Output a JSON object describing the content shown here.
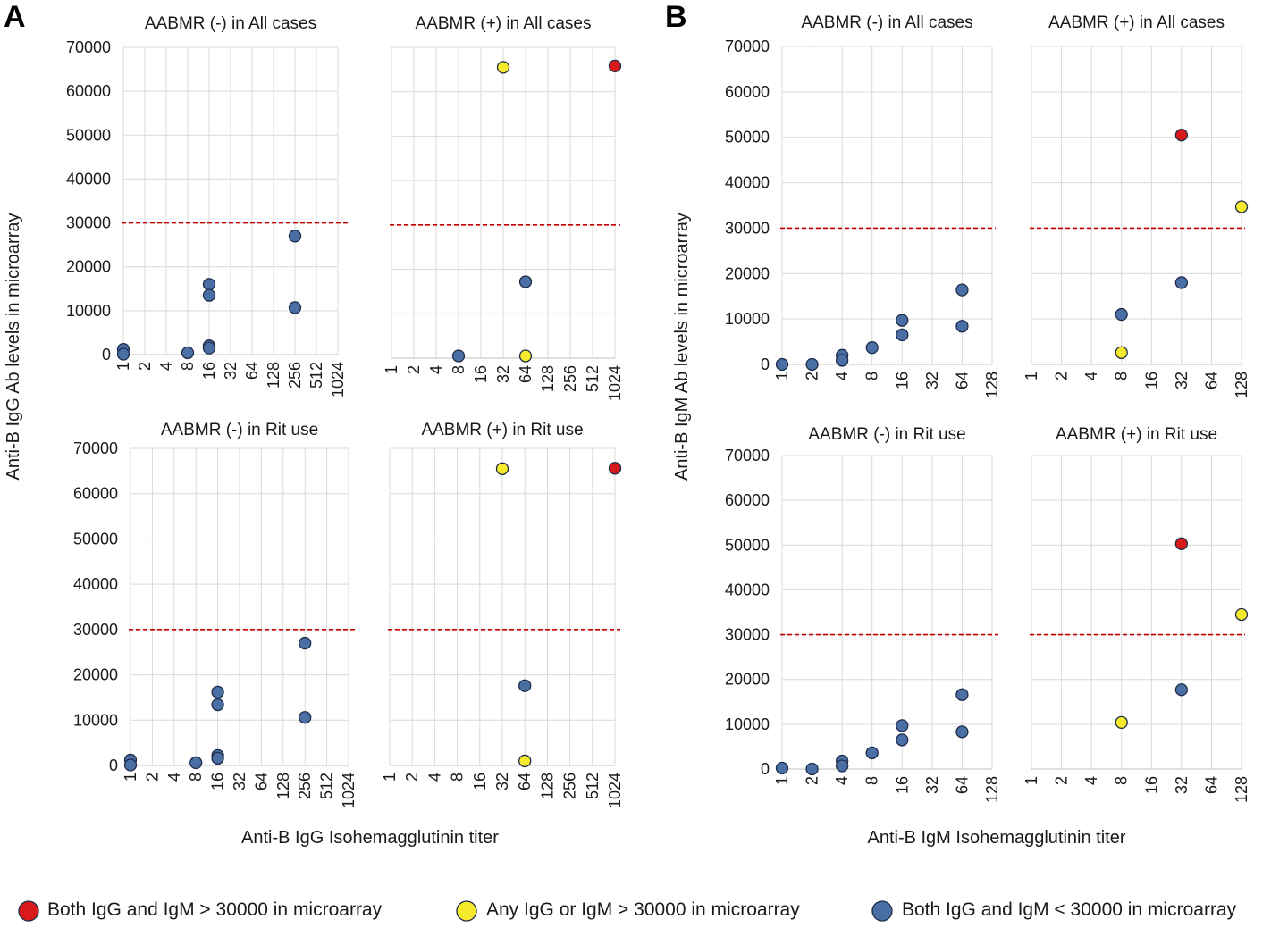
{
  "panel_letters": [
    "A",
    "B"
  ],
  "common_axis_labels": {
    "A_y": "Anti-B IgG Ab levels in microarray",
    "A_x": "Anti-B IgG Isohemagglutinin titer",
    "B_y": "Anti-B IgM Ab levels in microarray",
    "B_x": "Anti-B IgM Isohemagglutinin titer"
  },
  "colors": {
    "both_over": "#d91a1a",
    "any_over": "#f5ea2c",
    "both_under": "#4a6fa5",
    "threshold_line": "#c00000"
  },
  "legend": [
    {
      "key": "both_over",
      "label": "Both IgG and IgM > 30000 in microarray"
    },
    {
      "key": "any_over",
      "label": "Any IgG or IgM > 30000 in microarray"
    },
    {
      "key": "both_under",
      "label": "Both IgG and IgM < 30000 in microarray"
    }
  ],
  "chart_data": [
    {
      "id": "A1",
      "type": "scatter",
      "title": "AABMR (-) in All cases",
      "xscale": "log2",
      "x_ticks": [
        "1",
        "2",
        "4",
        "8",
        "16",
        "32",
        "64",
        "128",
        "256",
        "512",
        "1024"
      ],
      "yticks": [
        "0",
        "10000",
        "20000",
        "30000",
        "40000",
        "50000",
        "60000",
        "70000"
      ],
      "ylim": [
        0,
        70000
      ],
      "threshold": 30000,
      "grid": true,
      "xlabel": "Anti-B IgG Isohemagglutinin titer",
      "ylabel": "Anti-B IgG Ab levels in microarray",
      "points": [
        {
          "x": 1,
          "y": 1200,
          "group": "both_under"
        },
        {
          "x": 1,
          "y": 100,
          "group": "both_under"
        },
        {
          "x": 8,
          "y": 400,
          "group": "both_under"
        },
        {
          "x": 16,
          "y": 16000,
          "group": "both_under"
        },
        {
          "x": 16,
          "y": 13500,
          "group": "both_under"
        },
        {
          "x": 16,
          "y": 2000,
          "group": "both_under"
        },
        {
          "x": 16,
          "y": 1500,
          "group": "both_under"
        },
        {
          "x": 256,
          "y": 27000,
          "group": "both_under"
        },
        {
          "x": 256,
          "y": 10700,
          "group": "both_under"
        }
      ]
    },
    {
      "id": "A2",
      "type": "scatter",
      "title": "AABMR (+) in All cases",
      "xscale": "log2",
      "x_ticks": [
        "1",
        "2",
        "4",
        "8",
        "16",
        "32",
        "64",
        "128",
        "256",
        "512",
        "1024"
      ],
      "yticks": [
        "0",
        "10000",
        "20000",
        "30000",
        "40000",
        "50000",
        "60000",
        "70000"
      ],
      "ylim": [
        0,
        70000
      ],
      "threshold": 30000,
      "grid": true,
      "points": [
        {
          "x": 32,
          "y": 65500,
          "group": "any_over"
        },
        {
          "x": 1024,
          "y": 65800,
          "group": "both_over"
        },
        {
          "x": 64,
          "y": 17200,
          "group": "both_under"
        },
        {
          "x": 8,
          "y": 500,
          "group": "both_under"
        },
        {
          "x": 64,
          "y": 500,
          "group": "any_over"
        }
      ]
    },
    {
      "id": "A3",
      "type": "scatter",
      "title": "AABMR (-) in Rit use",
      "xscale": "log2",
      "x_ticks": [
        "1",
        "2",
        "4",
        "8",
        "16",
        "32",
        "64",
        "128",
        "256",
        "512",
        "1024"
      ],
      "yticks": [
        "0",
        "10000",
        "20000",
        "30000",
        "40000",
        "50000",
        "60000",
        "70000"
      ],
      "ylim": [
        0,
        70000
      ],
      "threshold": 30000,
      "grid": true,
      "points": [
        {
          "x": 1,
          "y": 1200,
          "group": "both_under"
        },
        {
          "x": 1,
          "y": 100,
          "group": "both_under"
        },
        {
          "x": 8,
          "y": 600,
          "group": "both_under"
        },
        {
          "x": 16,
          "y": 16200,
          "group": "both_under"
        },
        {
          "x": 16,
          "y": 13400,
          "group": "both_under"
        },
        {
          "x": 16,
          "y": 2200,
          "group": "both_under"
        },
        {
          "x": 16,
          "y": 1600,
          "group": "both_under"
        },
        {
          "x": 256,
          "y": 27000,
          "group": "both_under"
        },
        {
          "x": 256,
          "y": 10600,
          "group": "both_under"
        }
      ]
    },
    {
      "id": "A4",
      "type": "scatter",
      "title": "AABMR (+) in Rit use",
      "xscale": "log2",
      "x_ticks": [
        "1",
        "2",
        "4",
        "8",
        "16",
        "32",
        "64",
        "128",
        "256",
        "512",
        "1024"
      ],
      "yticks": [
        "0",
        "10000",
        "20000",
        "30000",
        "40000",
        "50000",
        "60000",
        "70000"
      ],
      "ylim": [
        0,
        70000
      ],
      "threshold": 30000,
      "grid": true,
      "points": [
        {
          "x": 32,
          "y": 65500,
          "group": "any_over"
        },
        {
          "x": 1024,
          "y": 65600,
          "group": "both_over"
        },
        {
          "x": 64,
          "y": 17600,
          "group": "both_under"
        },
        {
          "x": 64,
          "y": 1000,
          "group": "any_over"
        }
      ]
    },
    {
      "id": "B1",
      "type": "scatter",
      "title": "AABMR (-) in All cases",
      "xscale": "log2",
      "x_ticks": [
        "1",
        "2",
        "4",
        "8",
        "16",
        "32",
        "64",
        "128"
      ],
      "yticks": [
        "0",
        "10000",
        "20000",
        "30000",
        "40000",
        "50000",
        "60000",
        "70000"
      ],
      "ylim": [
        0,
        70000
      ],
      "threshold": 30000,
      "grid": true,
      "xlabel": "Anti-B IgM Isohemagglutinin titer",
      "ylabel": "Anti-B IgM Ab levels in microarray",
      "points": [
        {
          "x": 1,
          "y": 0,
          "group": "both_under"
        },
        {
          "x": 2,
          "y": 0,
          "group": "both_under"
        },
        {
          "x": 4,
          "y": 2000,
          "group": "both_under"
        },
        {
          "x": 4,
          "y": 900,
          "group": "both_under"
        },
        {
          "x": 8,
          "y": 3700,
          "group": "both_under"
        },
        {
          "x": 16,
          "y": 9700,
          "group": "both_under"
        },
        {
          "x": 16,
          "y": 6500,
          "group": "both_under"
        },
        {
          "x": 64,
          "y": 16400,
          "group": "both_under"
        },
        {
          "x": 64,
          "y": 8400,
          "group": "both_under"
        }
      ]
    },
    {
      "id": "B2",
      "type": "scatter",
      "title": "AABMR (+) in All cases",
      "xscale": "log2",
      "x_ticks": [
        "1",
        "2",
        "4",
        "8",
        "16",
        "32",
        "64",
        "128"
      ],
      "yticks": [
        "0",
        "10000",
        "20000",
        "30000",
        "40000",
        "50000",
        "60000",
        "70000"
      ],
      "ylim": [
        0,
        70000
      ],
      "threshold": 30000,
      "grid": true,
      "points": [
        {
          "x": 32,
          "y": 50500,
          "group": "both_over"
        },
        {
          "x": 128,
          "y": 34700,
          "group": "any_over"
        },
        {
          "x": 32,
          "y": 18000,
          "group": "both_under"
        },
        {
          "x": 8,
          "y": 11000,
          "group": "both_under"
        },
        {
          "x": 8,
          "y": 2600,
          "group": "any_over"
        }
      ]
    },
    {
      "id": "B3",
      "type": "scatter",
      "title": "AABMR (-) in Rit use",
      "xscale": "log2",
      "x_ticks": [
        "1",
        "2",
        "4",
        "8",
        "16",
        "32",
        "64",
        "128"
      ],
      "yticks": [
        "0",
        "10000",
        "20000",
        "30000",
        "40000",
        "50000",
        "60000",
        "70000"
      ],
      "ylim": [
        0,
        70000
      ],
      "threshold": 30000,
      "grid": true,
      "points": [
        {
          "x": 1,
          "y": 200,
          "group": "both_under"
        },
        {
          "x": 2,
          "y": 0,
          "group": "both_under"
        },
        {
          "x": 4,
          "y": 1800,
          "group": "both_under"
        },
        {
          "x": 4,
          "y": 700,
          "group": "both_under"
        },
        {
          "x": 8,
          "y": 3600,
          "group": "both_under"
        },
        {
          "x": 16,
          "y": 9700,
          "group": "both_under"
        },
        {
          "x": 16,
          "y": 6500,
          "group": "both_under"
        },
        {
          "x": 64,
          "y": 16600,
          "group": "both_under"
        },
        {
          "x": 64,
          "y": 8300,
          "group": "both_under"
        }
      ]
    },
    {
      "id": "B4",
      "type": "scatter",
      "title": "AABMR (+) in Rit use",
      "xscale": "log2",
      "x_ticks": [
        "1",
        "2",
        "4",
        "8",
        "16",
        "32",
        "64",
        "128"
      ],
      "yticks": [
        "0",
        "10000",
        "20000",
        "30000",
        "40000",
        "50000",
        "60000",
        "70000"
      ],
      "ylim": [
        0,
        70000
      ],
      "threshold": 30000,
      "grid": true,
      "points": [
        {
          "x": 32,
          "y": 50300,
          "group": "both_over"
        },
        {
          "x": 128,
          "y": 34500,
          "group": "any_over"
        },
        {
          "x": 32,
          "y": 17700,
          "group": "both_under"
        },
        {
          "x": 8,
          "y": 10400,
          "group": "any_over"
        }
      ]
    }
  ]
}
